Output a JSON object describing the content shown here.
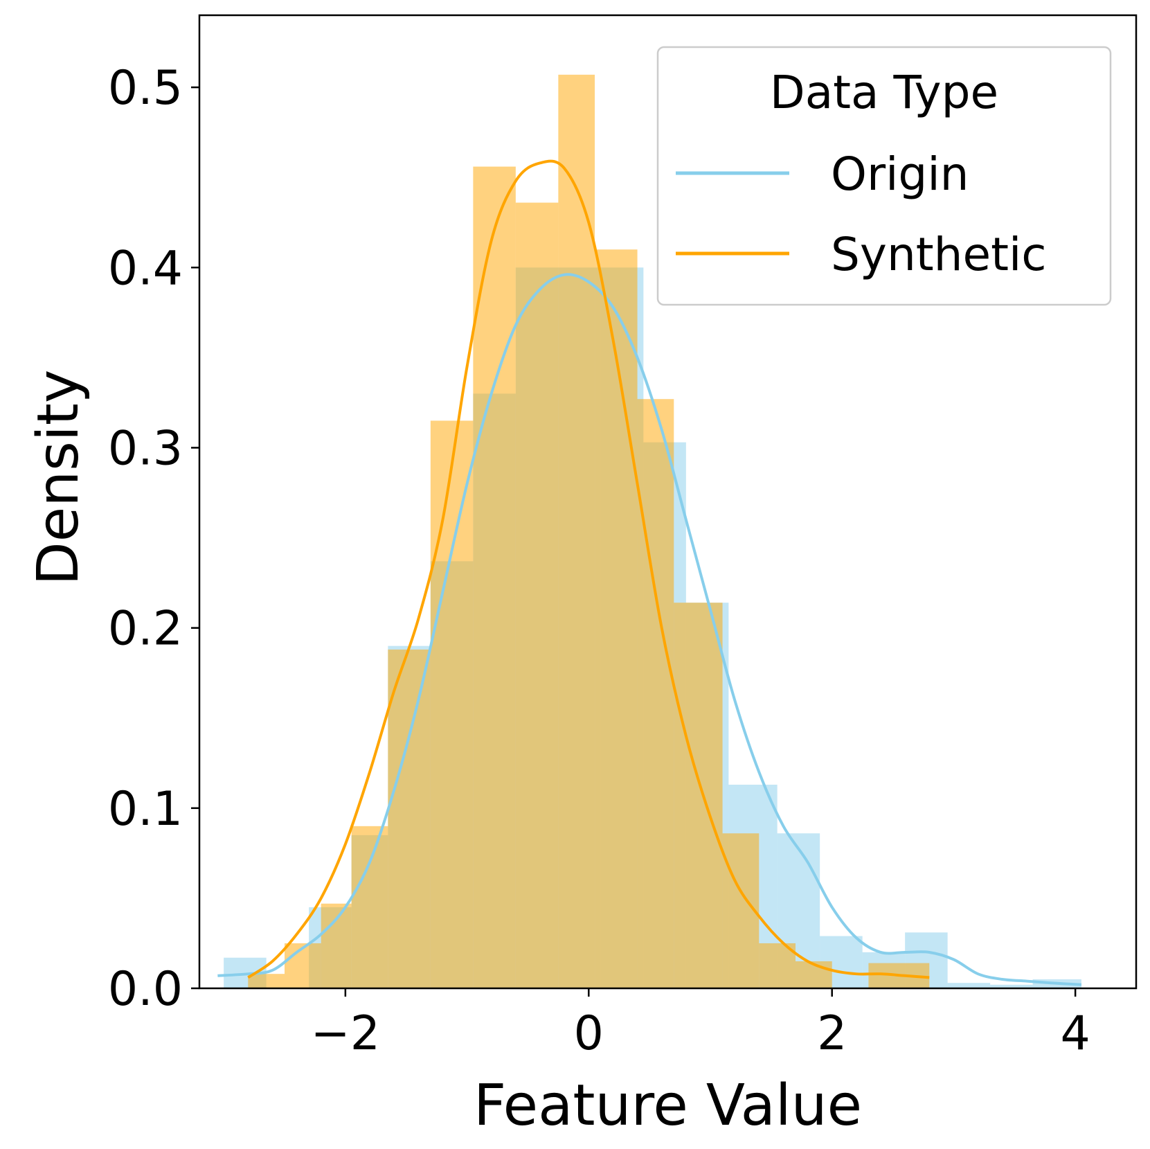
{
  "chart_data": {
    "type": "histogram",
    "xlabel": "Feature Value",
    "ylabel": "Density",
    "xlim": [
      -3.2,
      4.5
    ],
    "ylim": [
      0,
      0.54
    ],
    "xticks": [
      -2,
      0,
      2,
      4
    ],
    "xtick_labels": [
      "−2",
      "0",
      "2",
      "4"
    ],
    "yticks": [
      0.0,
      0.1,
      0.2,
      0.3,
      0.4,
      0.5
    ],
    "ytick_labels": [
      "0.0",
      "0.1",
      "0.2",
      "0.3",
      "0.4",
      "0.5"
    ],
    "grid": false,
    "legend": {
      "title": "Data Type",
      "position": "top-right",
      "entries": [
        "Origin",
        "Synthetic"
      ]
    },
    "series": [
      {
        "name": "Origin",
        "color": "#87CEEB",
        "histogram": {
          "bins": [
            [
              -3.0,
              -2.65,
              0.017
            ],
            [
              -2.65,
              -2.3,
              0.0
            ],
            [
              -2.3,
              -1.95,
              0.045
            ],
            [
              -1.95,
              -1.65,
              0.085
            ],
            [
              -1.65,
              -1.3,
              0.19
            ],
            [
              -1.3,
              -0.95,
              0.237
            ],
            [
              -0.95,
              -0.6,
              0.33
            ],
            [
              -0.6,
              -0.25,
              0.4
            ],
            [
              -0.25,
              0.1,
              0.4
            ],
            [
              0.1,
              0.45,
              0.4
            ],
            [
              0.45,
              0.8,
              0.303
            ],
            [
              0.8,
              1.15,
              0.214
            ],
            [
              1.15,
              1.55,
              0.113
            ],
            [
              1.55,
              1.9,
              0.086
            ],
            [
              1.9,
              2.25,
              0.029
            ],
            [
              2.25,
              2.6,
              0.02
            ],
            [
              2.6,
              2.95,
              0.031
            ],
            [
              2.95,
              3.3,
              0.003
            ],
            [
              3.3,
              3.65,
              0.002
            ],
            [
              3.65,
              4.05,
              0.005
            ]
          ]
        },
        "kde": {
          "x": [
            -3.05,
            -2.8,
            -2.6,
            -2.4,
            -2.2,
            -2.0,
            -1.8,
            -1.6,
            -1.4,
            -1.2,
            -1.0,
            -0.8,
            -0.6,
            -0.4,
            -0.2,
            0.0,
            0.2,
            0.4,
            0.6,
            0.8,
            1.0,
            1.2,
            1.4,
            1.6,
            1.8,
            2.0,
            2.2,
            2.4,
            2.6,
            2.8,
            3.0,
            3.2,
            3.4,
            3.6,
            3.8,
            4.05
          ],
          "y": [
            0.007,
            0.008,
            0.01,
            0.02,
            0.03,
            0.045,
            0.07,
            0.11,
            0.16,
            0.22,
            0.28,
            0.33,
            0.368,
            0.388,
            0.396,
            0.392,
            0.378,
            0.35,
            0.31,
            0.26,
            0.21,
            0.16,
            0.12,
            0.09,
            0.07,
            0.045,
            0.028,
            0.02,
            0.02,
            0.02,
            0.016,
            0.008,
            0.005,
            0.004,
            0.003,
            0.002
          ]
        }
      },
      {
        "name": "Synthetic",
        "color": "#FFA500",
        "histogram": {
          "bins": [
            [
              -2.8,
              -2.5,
              0.008
            ],
            [
              -2.5,
              -2.2,
              0.025
            ],
            [
              -2.2,
              -1.95,
              0.047
            ],
            [
              -1.95,
              -1.65,
              0.09
            ],
            [
              -1.65,
              -1.3,
              0.188
            ],
            [
              -1.3,
              -0.95,
              0.315
            ],
            [
              -0.95,
              -0.6,
              0.456
            ],
            [
              -0.6,
              -0.25,
              0.436
            ],
            [
              -0.25,
              0.05,
              0.507
            ],
            [
              0.05,
              0.4,
              0.41
            ],
            [
              0.4,
              0.7,
              0.327
            ],
            [
              0.7,
              1.1,
              0.214
            ],
            [
              1.1,
              1.4,
              0.086
            ],
            [
              1.4,
              1.7,
              0.025
            ],
            [
              1.7,
              2.0,
              0.015
            ],
            [
              2.0,
              2.3,
              0.0
            ],
            [
              2.3,
              2.8,
              0.014
            ]
          ]
        },
        "kde": {
          "x": [
            -2.8,
            -2.6,
            -2.4,
            -2.2,
            -2.0,
            -1.8,
            -1.6,
            -1.4,
            -1.2,
            -1.0,
            -0.8,
            -0.6,
            -0.4,
            -0.2,
            0.0,
            0.2,
            0.4,
            0.6,
            0.8,
            1.0,
            1.2,
            1.4,
            1.6,
            1.8,
            2.0,
            2.2,
            2.4,
            2.6,
            2.8
          ],
          "y": [
            0.006,
            0.015,
            0.03,
            0.05,
            0.08,
            0.12,
            0.165,
            0.205,
            0.26,
            0.345,
            0.415,
            0.448,
            0.458,
            0.455,
            0.425,
            0.36,
            0.28,
            0.2,
            0.14,
            0.095,
            0.06,
            0.04,
            0.025,
            0.015,
            0.01,
            0.008,
            0.008,
            0.007,
            0.006
          ]
        }
      }
    ]
  }
}
